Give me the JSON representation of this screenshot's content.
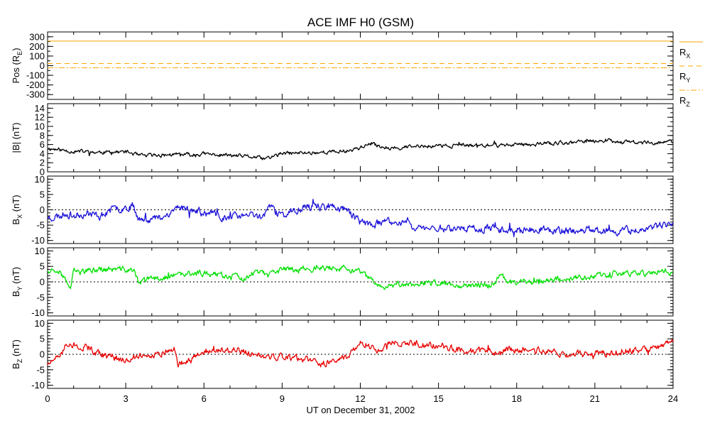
{
  "chart_data": {
    "type": "line",
    "title": "ACE IMF H0 (GSM)",
    "xlabel": "UT on December 31, 2002",
    "xlim": [
      0,
      24
    ],
    "xticks": [
      "0",
      "3",
      "6",
      "9",
      "12",
      "15",
      "18",
      "21",
      "24"
    ],
    "panels": [
      {
        "id": "pos",
        "ylabel": "Pos (R",
        "ylabel_sub": "E",
        "ylabel_suffix": ")",
        "ylim": [
          -350,
          350
        ],
        "yticks": [
          "300",
          "200",
          "100",
          "0",
          "-100",
          "-200",
          "-300"
        ],
        "series": [
          {
            "name": "R",
            "sub": "X",
            "color": "#ffa500",
            "style": "solid",
            "constant": 255
          },
          {
            "name": "R",
            "sub": "Y",
            "color": "#ffa500",
            "style": "dash",
            "constant": 22
          },
          {
            "name": "R",
            "sub": "Z",
            "color": "#ffa500",
            "style": "dashdot",
            "constant": -22
          }
        ]
      },
      {
        "id": "bmag",
        "ylabel": "|B| (nT)",
        "ylim": [
          0,
          15
        ],
        "yticks": [
          "14",
          "12",
          "10",
          "8",
          "6",
          "4",
          "2",
          "0"
        ],
        "zero_line": false,
        "series": [
          {
            "name": "|B|",
            "color": "#000000",
            "seed": 11,
            "noise": 0.35,
            "x": [
              0,
              0.5,
              1,
              2,
              3,
              3.3,
              3.5,
              4,
              5,
              5.5,
              6,
              7,
              7.5,
              8,
              8.3,
              8.6,
              9,
              10,
              11,
              11.5,
              12,
              12.3,
              12.7,
              13,
              14,
              15,
              16,
              17,
              18,
              19,
              20,
              21,
              21.5,
              22,
              23,
              24
            ],
            "y": [
              5.2,
              4.8,
              4.5,
              4.3,
              4.4,
              4.0,
              3.5,
              3.6,
              3.8,
              3.7,
              3.9,
              3.6,
              3.4,
              3.2,
              2.8,
              3.3,
              4.0,
              4.2,
              4.4,
              4.6,
              5.4,
              6.0,
              5.8,
              5.3,
              5.5,
              5.7,
              5.8,
              5.8,
              6.0,
              6.2,
              6.4,
              6.8,
              7.0,
              6.6,
              6.4,
              6.6
            ]
          }
        ]
      },
      {
        "id": "bx",
        "ylabel": "B",
        "ylabel_sub": "X",
        "ylabel_suffix": " (nT)",
        "ylim": [
          -11,
          11
        ],
        "yticks": [
          "10",
          "5",
          "0",
          "-5",
          "-10"
        ],
        "zero_line": true,
        "series": [
          {
            "name": "Bx",
            "color": "#1a10d8",
            "seed": 23,
            "noise": 1.0,
            "x": [
              0,
              0.5,
              0.7,
              1,
              1.5,
              2,
              2.5,
              3,
              3.3,
              3.5,
              4,
              4.5,
              5,
              5.5,
              6,
              6.5,
              7,
              7.5,
              8,
              8.3,
              8.5,
              8.8,
              9,
              9.5,
              10,
              10.5,
              11,
              11.5,
              12,
              12.5,
              13,
              13.5,
              13.9,
              14,
              15,
              16,
              17,
              18,
              19,
              20,
              21,
              22,
              23,
              24
            ],
            "y": [
              -2.5,
              -2,
              -1,
              -2,
              -1,
              -2,
              0,
              1,
              1.5,
              -3,
              -3,
              -2,
              1,
              0,
              -1,
              -2,
              -2.5,
              -2,
              -2,
              -2,
              1.5,
              -1,
              -2,
              0,
              1,
              1,
              1,
              0,
              -4,
              -5,
              -4,
              -4.5,
              -3,
              -6,
              -6,
              -6,
              -6,
              -6.5,
              -6.5,
              -7,
              -6.5,
              -7,
              -6,
              -5
            ]
          }
        ]
      },
      {
        "id": "by",
        "ylabel": "B",
        "ylabel_sub": "Y",
        "ylabel_suffix": " (nT)",
        "ylim": [
          -11,
          11
        ],
        "yticks": [
          "10",
          "5",
          "0",
          "-5",
          "-10"
        ],
        "zero_line": true,
        "series": [
          {
            "name": "By",
            "color": "#00e000",
            "seed": 37,
            "noise": 0.8,
            "x": [
              0,
              0.5,
              0.7,
              0.9,
              1,
              2,
              3,
              3.3,
              3.5,
              4,
              5,
              6,
              7,
              7.5,
              8,
              8.5,
              9,
              10,
              11,
              11.5,
              12,
              12.5,
              12.8,
              13,
              14,
              15,
              16,
              17,
              17.4,
              17.8,
              18,
              19,
              20,
              21,
              22,
              23,
              23.8,
              24
            ],
            "y": [
              4,
              4,
              0,
              -2,
              3,
              4,
              4,
              3.5,
              0,
              1,
              2,
              3,
              2,
              1,
              3,
              2,
              4,
              4.2,
              4.5,
              4,
              3,
              0,
              -2,
              -1,
              -0.5,
              -0.5,
              -1,
              -1,
              2,
              -0.5,
              0,
              0.5,
              1,
              2,
              2.5,
              2.8,
              3.5,
              2.5
            ]
          }
        ]
      },
      {
        "id": "bz",
        "ylabel": "B",
        "ylabel_sub": "Z",
        "ylabel_suffix": " (nT)",
        "ylim": [
          -11,
          11
        ],
        "yticks": [
          "10",
          "5",
          "0",
          "-5",
          "-10"
        ],
        "zero_line": true,
        "series": [
          {
            "name": "Bz",
            "color": "#e80000",
            "seed": 51,
            "noise": 0.9,
            "x": [
              0,
              0.3,
              0.6,
              0.7,
              1,
              1.5,
              2,
              2.5,
              3,
              3.5,
              4,
              4.5,
              4.9,
              5,
              5.5,
              6,
              7,
              7.5,
              8,
              8.5,
              9,
              10,
              10.5,
              11,
              11.5,
              12,
              12.5,
              12.8,
              13,
              14,
              15,
              16,
              17,
              17.4,
              17.6,
              18,
              19,
              20,
              21,
              22,
              23,
              23.8,
              24
            ],
            "y": [
              -3,
              -2,
              1,
              3,
              3,
              2.5,
              0,
              -1,
              -2,
              -0.5,
              -0.5,
              1,
              2,
              -3,
              -2,
              1,
              1.5,
              1,
              0,
              -1,
              -1,
              -2,
              -3,
              -2,
              -1,
              3.5,
              3,
              0,
              3.5,
              3.5,
              3,
              1,
              1,
              0,
              2,
              1.5,
              1,
              0,
              0.2,
              0.8,
              1.5,
              3.5,
              4.5
            ]
          }
        ]
      }
    ]
  }
}
